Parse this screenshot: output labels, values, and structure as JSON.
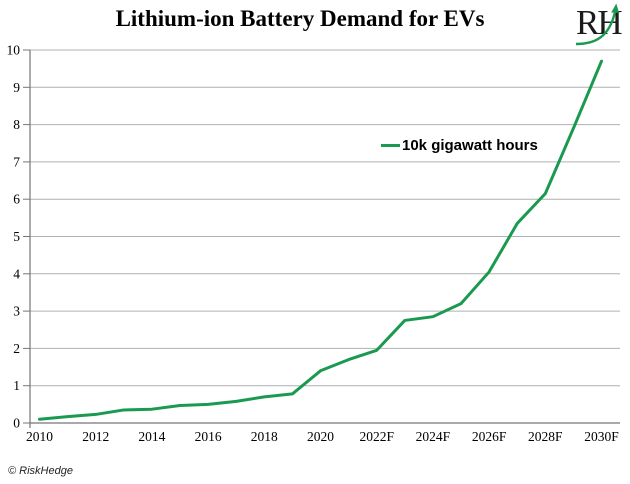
{
  "title": "Lithium-ion Battery Demand for EVs",
  "logo": {
    "text": "RH"
  },
  "legend": {
    "label": "10k gigawatt hours"
  },
  "footer": "© RiskHedge",
  "colors": {
    "line": "#1a9a50",
    "grid": "#b0b0b0",
    "axis": "#767676",
    "text": "#000000"
  },
  "chart_data": {
    "type": "line",
    "title": "Lithium-ion Battery Demand for EVs",
    "x": [
      2010,
      2011,
      2012,
      2013,
      2014,
      2015,
      2016,
      2017,
      2018,
      2019,
      2020,
      2021,
      2022,
      2023,
      2024,
      2025,
      2026,
      2027,
      2028,
      2029,
      2030
    ],
    "x_tick_labels": [
      "2010",
      "2012",
      "2014",
      "2016",
      "2018",
      "2020",
      "2022F",
      "2024F",
      "2026F",
      "2028F",
      "2030F"
    ],
    "series": [
      {
        "name": "10k gigawatt hours",
        "values": [
          0.1,
          0.17,
          0.23,
          0.35,
          0.37,
          0.47,
          0.5,
          0.58,
          0.7,
          0.78,
          1.4,
          1.7,
          1.95,
          2.75,
          2.85,
          3.2,
          4.05,
          5.35,
          6.15,
          7.9,
          9.7
        ]
      }
    ],
    "ylim": [
      0,
      10
    ],
    "y_ticks": [
      0,
      1,
      2,
      3,
      4,
      5,
      6,
      7,
      8,
      9,
      10
    ],
    "ylabel": "",
    "xlabel": "",
    "grid": true,
    "legend_position": "inside-upper-middle-right"
  }
}
